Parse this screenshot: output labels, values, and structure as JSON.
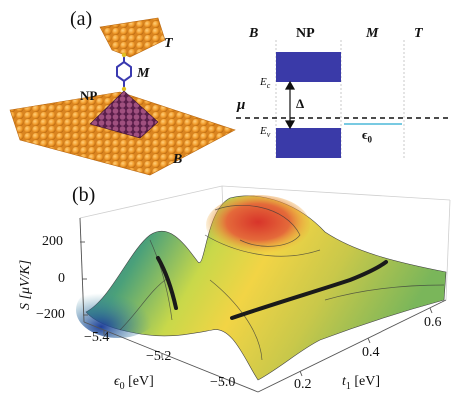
{
  "panel_a": {
    "label": "(a)",
    "molecule": {
      "top_label": "T",
      "mol_label": "M",
      "np_label": "NP",
      "bottom_label": "B"
    },
    "energy_diagram": {
      "columns": [
        "B",
        "NP",
        "M",
        "T"
      ],
      "ec_label": "E",
      "ec_sub": "c",
      "ev_label": "E",
      "ev_sub": "v",
      "gap_label": "Δ",
      "mu_label": "μ",
      "level_label": "ϵ",
      "level_sub": "0",
      "colors": {
        "band": "#3a3aa8",
        "level": "#4cb8d8"
      }
    }
  },
  "panel_b": {
    "label": "(b)",
    "chart_data": {
      "type": "surface3d",
      "z_label": "S [μV/K]",
      "z_ticks": [
        "200",
        "0",
        "−200"
      ],
      "x_label_main": "ϵ",
      "x_label_sub": "0",
      "x_label_unit": "[eV]",
      "x_ticks": [
        "−5.4",
        "−5.2",
        "−5.0"
      ],
      "y_label_main": "t",
      "y_label_sub": "1",
      "y_label_unit": "[eV]",
      "y_ticks": [
        "0.2",
        "0.4",
        "0.6"
      ],
      "zlim": [
        -250,
        300
      ]
    }
  }
}
